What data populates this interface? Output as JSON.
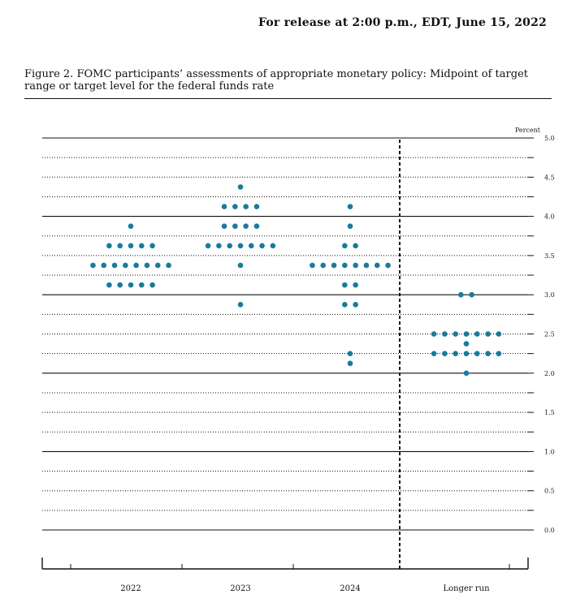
{
  "header": {
    "release_text": "For release at 2:00 p.m., EDT, June 15, 2022"
  },
  "figure": {
    "title": "Figure 2.  FOMC participants’ assessments of appropriate monetary policy: Midpoint of target range or target level for the federal funds rate"
  },
  "colors": {
    "dot": "#1a7a9a",
    "axis": "#111111"
  },
  "chart_data": {
    "type": "scatter",
    "title": "",
    "xlabel": "",
    "ylabel": "Percent",
    "ylim": [
      0,
      5.0
    ],
    "y_ticks": [
      "0.0",
      "0.5",
      "1.0",
      "1.5",
      "2.0",
      "2.5",
      "3.0",
      "3.5",
      "4.0",
      "4.5",
      "5.0"
    ],
    "grid": "horizontal every 0.25 (solid at 0.0, 1.0, 2.0, 3.0, 4.0, 5.0; dotted otherwise)",
    "categories": [
      "2022",
      "2023",
      "2024",
      "Longer run"
    ],
    "separator_before": "Longer run",
    "series": [
      {
        "values": [
          {
            "y": 3.875,
            "count": 1
          },
          {
            "y": 3.625,
            "count": 5
          },
          {
            "y": 3.375,
            "count": 8
          },
          {
            "y": 3.125,
            "count": 5
          }
        ]
      },
      {
        "values": [
          {
            "y": 4.375,
            "count": 1
          },
          {
            "y": 4.125,
            "count": 4
          },
          {
            "y": 3.875,
            "count": 4
          },
          {
            "y": 3.625,
            "count": 7
          },
          {
            "y": 3.375,
            "count": 1
          },
          {
            "y": 2.875,
            "count": 1
          }
        ]
      },
      {
        "values": [
          {
            "y": 4.125,
            "count": 1
          },
          {
            "y": 3.875,
            "count": 1
          },
          {
            "y": 3.625,
            "count": 2
          },
          {
            "y": 3.375,
            "count": 8
          },
          {
            "y": 3.125,
            "count": 2
          },
          {
            "y": 2.875,
            "count": 2
          },
          {
            "y": 2.25,
            "count": 1
          },
          {
            "y": 2.125,
            "count": 1
          }
        ]
      },
      {
        "values": [
          {
            "y": 3.0,
            "count": 2
          },
          {
            "y": 2.5,
            "count": 7
          },
          {
            "y": 2.375,
            "count": 1
          },
          {
            "y": 2.25,
            "count": 7
          },
          {
            "y": 2.0,
            "count": 1
          }
        ]
      }
    ]
  }
}
